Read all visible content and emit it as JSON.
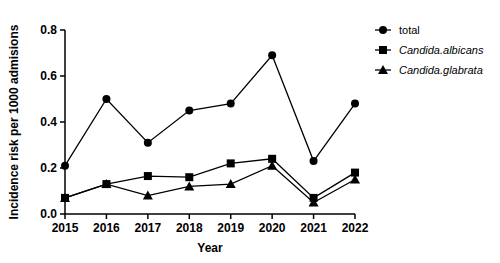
{
  "chart_data": {
    "type": "line",
    "x_label": "Year",
    "y_label": "Incidence risk per 1000 admisions",
    "x": [
      2015,
      2016,
      2017,
      2018,
      2019,
      2020,
      2021,
      2022
    ],
    "xlim": [
      2015,
      2022
    ],
    "xticks": [
      2015,
      2016,
      2017,
      2018,
      2019,
      2020,
      2021,
      2022
    ],
    "ylim": [
      0,
      0.8
    ],
    "yticks": [
      {
        "value": 0,
        "label": "0.0"
      },
      0.2,
      0.4,
      0.6,
      0.8
    ],
    "grid": false,
    "legend": "right",
    "series": [
      {
        "name": "total",
        "color": "#000000",
        "marker": "circle",
        "values": [
          0.21,
          0.5,
          0.31,
          0.45,
          0.48,
          0.69,
          0.23,
          0.48
        ]
      },
      {
        "name": "Candida.albicans",
        "color": "#000000",
        "marker": "square",
        "values": [
          0.07,
          0.13,
          0.165,
          0.16,
          0.22,
          0.24,
          0.07,
          0.18
        ]
      },
      {
        "name": "Candida.glabrata",
        "color": "#000000",
        "marker": "triangle",
        "values": [
          0.07,
          0.13,
          0.08,
          0.12,
          0.13,
          0.21,
          0.05,
          0.15
        ]
      }
    ]
  }
}
